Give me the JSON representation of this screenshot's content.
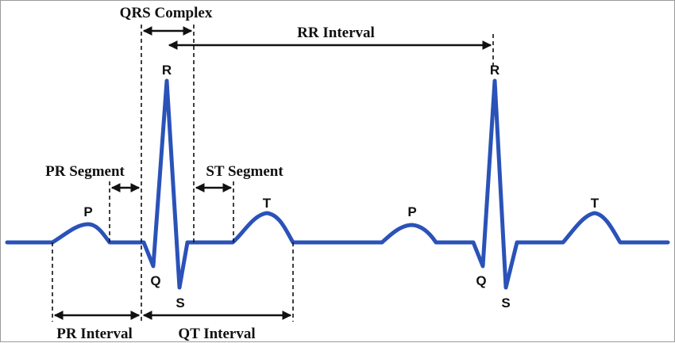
{
  "colors": {
    "waveform": "#2a52b8",
    "annotation": "#111111",
    "background": "#ffffff",
    "frame": "#9a9a9a"
  },
  "intervals": {
    "qrs_complex": "QRS Complex",
    "rr_interval": "RR Interval",
    "pr_segment": "PR Segment",
    "st_segment": "ST Segment",
    "pr_interval": "PR Interval",
    "qt_interval": "QT Interval"
  },
  "waves": {
    "p1": "P",
    "q1": "Q",
    "r1": "R",
    "s1": "S",
    "t1": "T",
    "p2": "P",
    "q2": "Q",
    "r2": "R",
    "s2": "S",
    "t2": "T"
  }
}
